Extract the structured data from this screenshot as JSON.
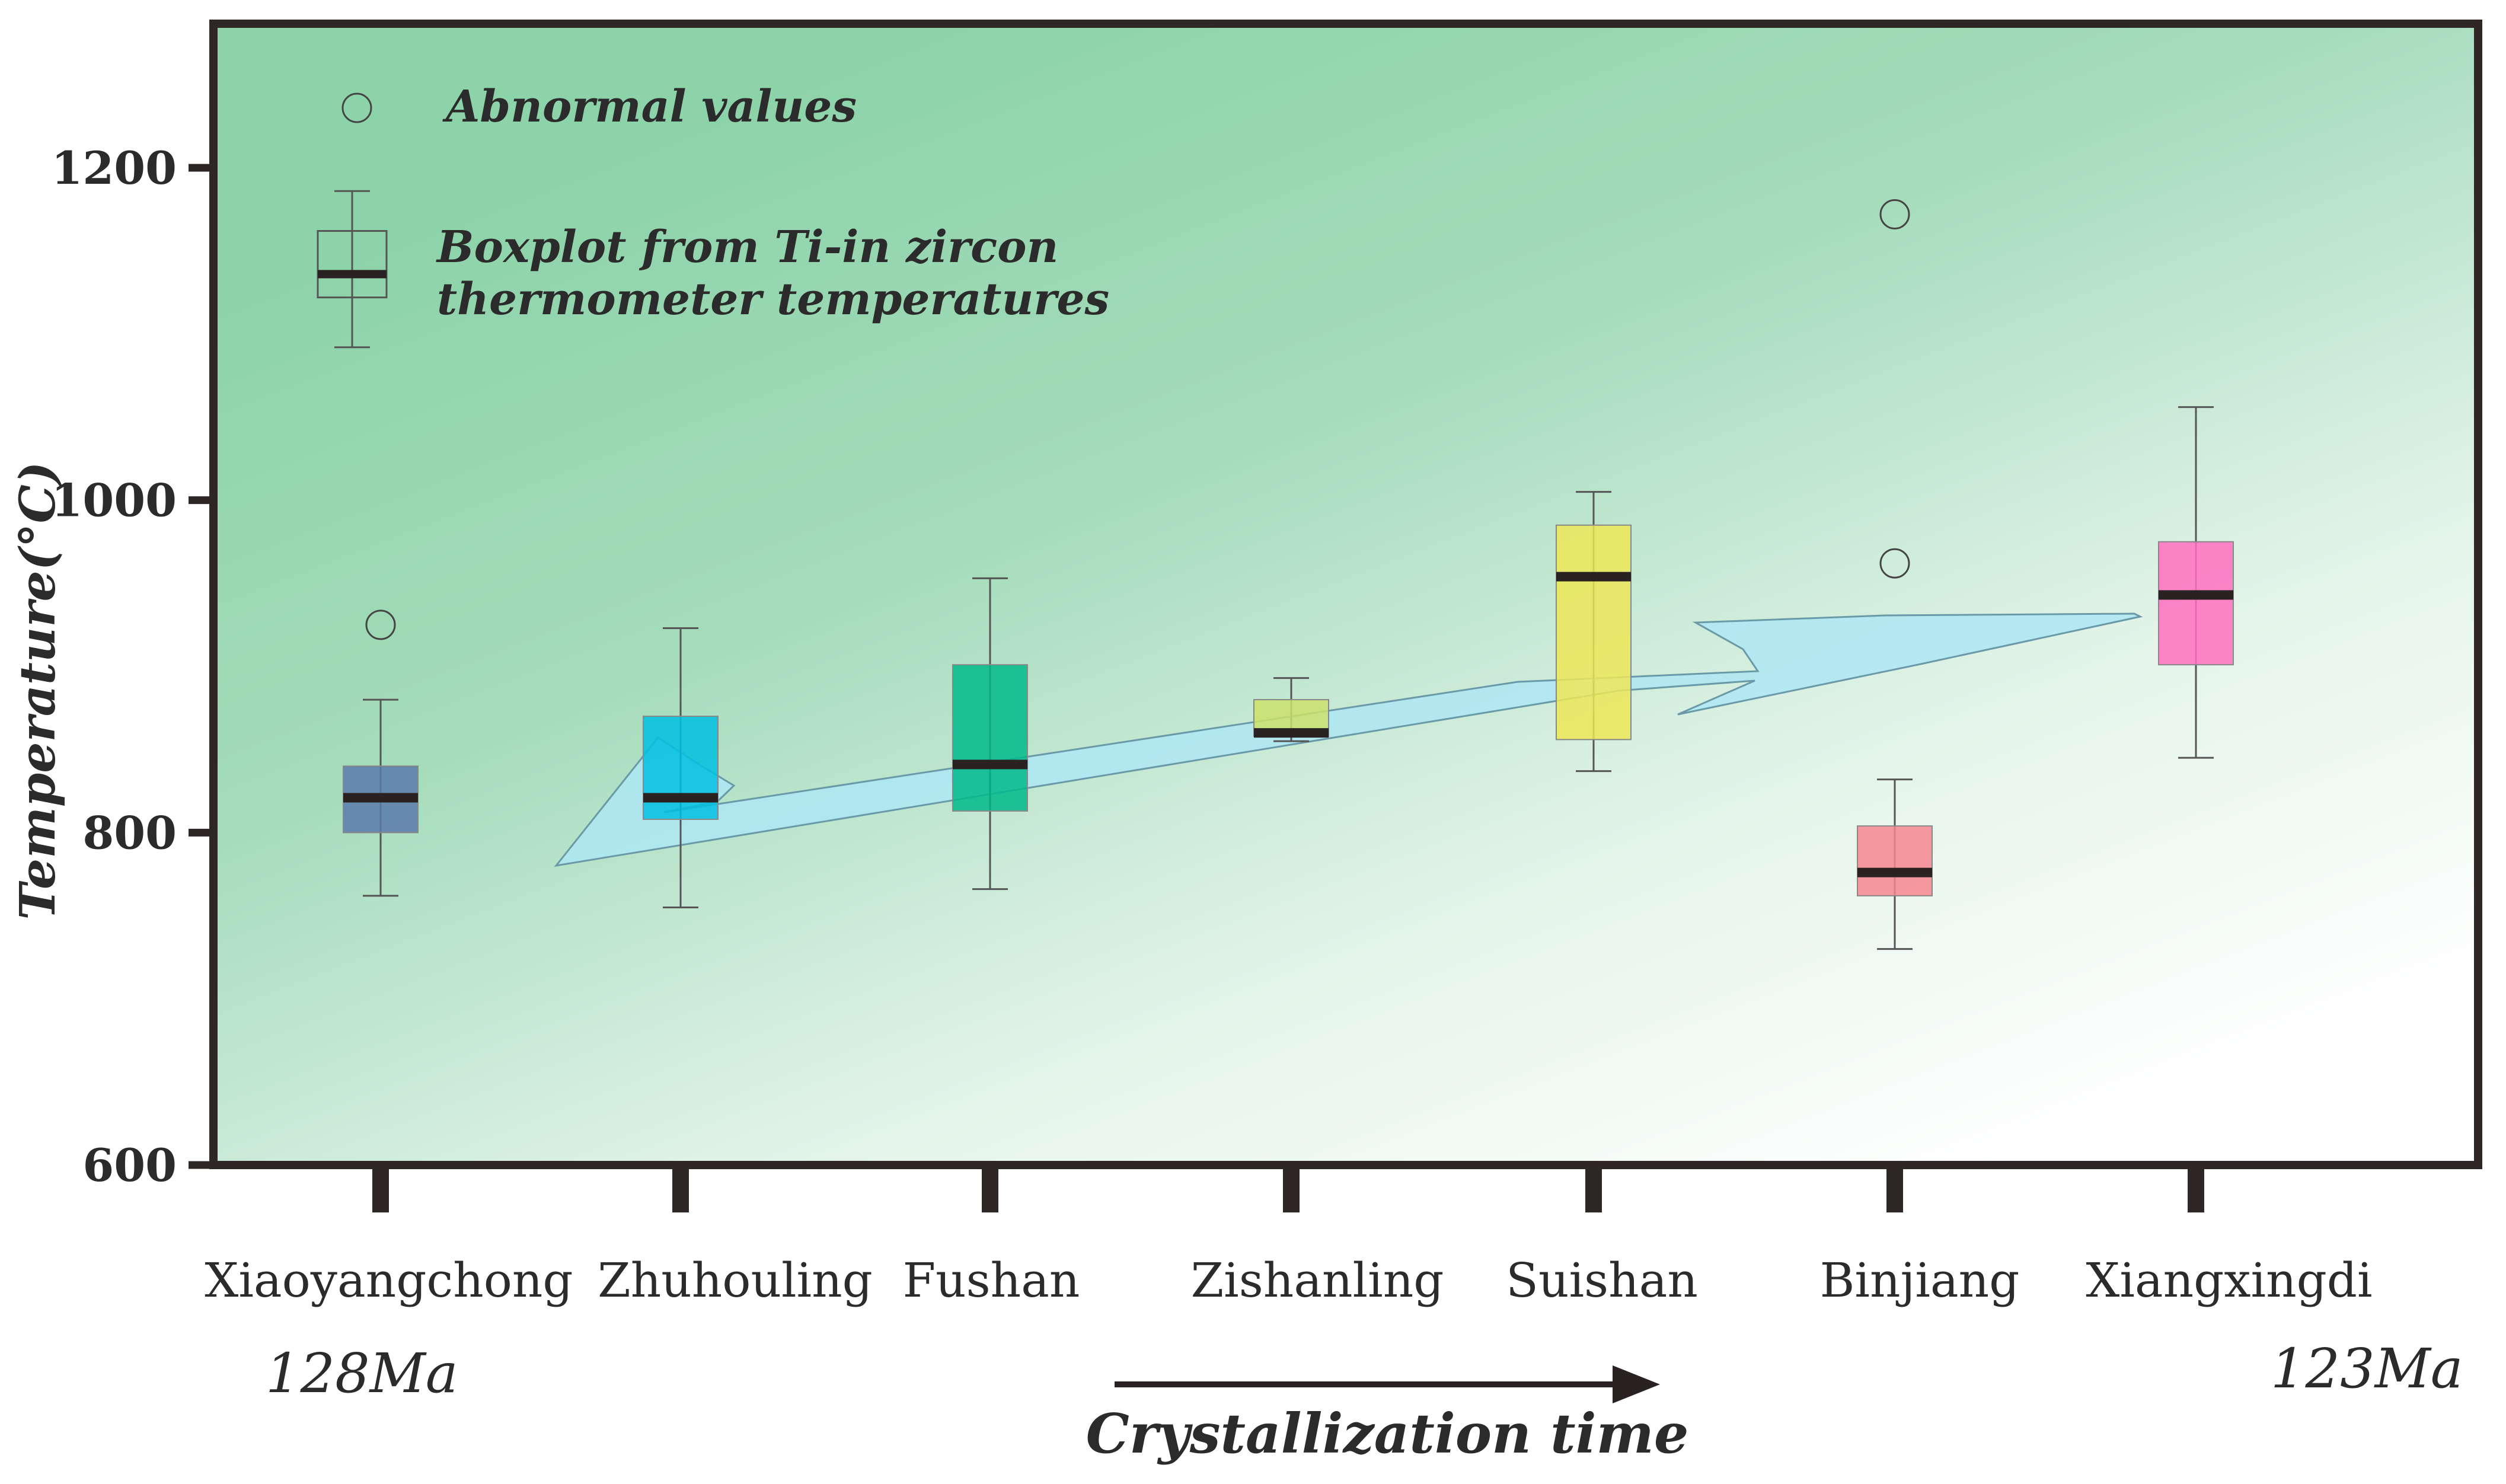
{
  "chart_data": {
    "type": "boxplot",
    "title": "",
    "ylabel": "Temperature(°C)",
    "xlabel": "Crystallization time",
    "ylim": [
      600,
      1300
    ],
    "yticks": [
      600,
      800,
      1000,
      1200
    ],
    "ytick_labels": [
      "600",
      "800",
      "1000",
      "1200"
    ],
    "start_age": "128Ma",
    "end_age": "123Ma",
    "legend": {
      "outlier_label": "Abnormal values",
      "box_label_line1": "Boxplot  from  Ti-in zircon",
      "box_label_line2": "thermometer  temperatures"
    },
    "legend_sample": {
      "whisker_low": 1092,
      "q1": 1122,
      "median": 1136,
      "q3": 1162,
      "whisker_high": 1186
    },
    "categories": [
      "Xiaoyangchong",
      "Zhuhouling",
      "Fushan",
      "Zishanling",
      "Suishan",
      "Binjiang",
      "Xiangxingdi"
    ],
    "boxes": [
      {
        "name": "Xiaoyangchong",
        "color": "#5a7aab",
        "whisker_low": 762,
        "q1": 800,
        "median": 821,
        "q3": 840,
        "whisker_high": 880,
        "outliers": [
          925
        ]
      },
      {
        "name": "Zhuhouling",
        "color": "#00bfe0",
        "whisker_low": 755,
        "q1": 808,
        "median": 821,
        "q3": 870,
        "whisker_high": 923,
        "outliers": []
      },
      {
        "name": "Fushan",
        "color": "#00b98a",
        "whisker_low": 766,
        "q1": 813,
        "median": 841,
        "q3": 901,
        "whisker_high": 953,
        "outliers": []
      },
      {
        "name": "Zishanling",
        "color": "#c9e26a",
        "whisker_low": 855,
        "q1": 858,
        "median": 860,
        "q3": 880,
        "whisker_high": 893,
        "outliers": []
      },
      {
        "name": "Suishan",
        "color": "#ece858",
        "whisker_low": 837,
        "q1": 856,
        "median": 954,
        "q3": 985,
        "whisker_high": 1005,
        "outliers": []
      },
      {
        "name": "Binjiang",
        "color": "#f7868f",
        "whisker_low": 730,
        "q1": 762,
        "median": 776,
        "q3": 804,
        "whisker_high": 832,
        "outliers": [
          962,
          1172
        ]
      },
      {
        "name": "Xiangxingdi",
        "color": "#ff6fc0",
        "whisker_low": 845,
        "q1": 901,
        "median": 943,
        "q3": 975,
        "whisker_high": 1056,
        "outliers": []
      }
    ],
    "trend_arrow": {
      "label": "",
      "from": "Xiaoyangchong",
      "to": "Xiangxingdi",
      "start_temp": 780,
      "end_temp": 945
    }
  }
}
